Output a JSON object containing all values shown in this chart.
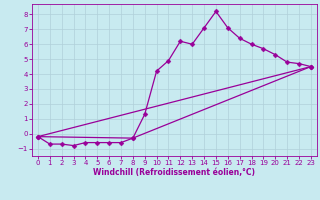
{
  "xlabel": "Windchill (Refroidissement éolien,°C)",
  "bg_color": "#c8eaf0",
  "line_color": "#990099",
  "grid_color": "#b0d0da",
  "xlim": [
    -0.5,
    23.5
  ],
  "ylim": [
    -1.5,
    8.7
  ],
  "xticks": [
    0,
    1,
    2,
    3,
    4,
    5,
    6,
    7,
    8,
    9,
    10,
    11,
    12,
    13,
    14,
    15,
    16,
    17,
    18,
    19,
    20,
    21,
    22,
    23
  ],
  "yticks": [
    -1,
    0,
    1,
    2,
    3,
    4,
    5,
    6,
    7,
    8
  ],
  "series1_x": [
    0,
    1,
    2,
    3,
    4,
    5,
    6,
    7,
    8,
    9,
    10,
    11,
    12,
    13,
    14,
    15,
    16,
    17,
    18,
    19,
    20,
    21,
    22,
    23
  ],
  "series1_y": [
    -0.2,
    -0.7,
    -0.7,
    -0.8,
    -0.6,
    -0.6,
    -0.6,
    -0.6,
    -0.3,
    1.3,
    4.2,
    4.9,
    6.2,
    6.0,
    7.1,
    8.2,
    7.1,
    6.4,
    6.0,
    5.7,
    5.3,
    4.8,
    4.7,
    4.5
  ],
  "series2_x": [
    0,
    23
  ],
  "series2_y": [
    -0.2,
    4.5
  ],
  "series3_x": [
    0,
    8,
    23
  ],
  "series3_y": [
    -0.2,
    -0.3,
    4.5
  ],
  "markersize": 2.5,
  "linewidth": 0.9,
  "tick_fontsize": 5,
  "xlabel_fontsize": 5.5,
  "xlabel_color": "#990099"
}
